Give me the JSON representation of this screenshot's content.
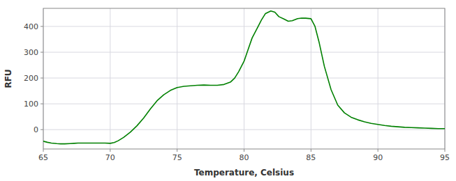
{
  "chart_data": {
    "type": "line",
    "xlabel": "Temperature, Celsius",
    "ylabel": "RFU",
    "color": "#008000",
    "grid": true,
    "xlim": [
      65,
      95
    ],
    "ylim": [
      -75,
      470
    ],
    "xticks": [
      65,
      70,
      75,
      80,
      85,
      90,
      95
    ],
    "yticks": [
      0,
      100,
      200,
      300,
      400
    ],
    "x": [
      65.0,
      65.3,
      65.6,
      66.0,
      66.3,
      66.6,
      67.0,
      67.3,
      67.6,
      68.0,
      68.3,
      68.6,
      69.0,
      69.3,
      69.6,
      70.0,
      70.3,
      70.6,
      71.0,
      71.5,
      72.0,
      72.5,
      73.0,
      73.5,
      74.0,
      74.5,
      75.0,
      75.5,
      76.0,
      76.5,
      77.0,
      77.5,
      78.0,
      78.5,
      79.0,
      79.3,
      79.6,
      80.0,
      80.3,
      80.6,
      81.0,
      81.3,
      81.6,
      82.0,
      82.3,
      82.6,
      83.0,
      83.3,
      83.6,
      84.0,
      84.3,
      84.6,
      85.0,
      85.3,
      85.6,
      86.0,
      86.5,
      87.0,
      87.5,
      88.0,
      88.5,
      89.0,
      89.5,
      90.0,
      90.5,
      91.0,
      91.5,
      92.0,
      92.5,
      93.0,
      93.5,
      94.0,
      94.5,
      95.0
    ],
    "values": [
      -45,
      -49,
      -52,
      -54,
      -55,
      -55,
      -54,
      -53,
      -52,
      -52,
      -52,
      -52,
      -52,
      -52,
      -52,
      -53,
      -50,
      -43,
      -30,
      -10,
      15,
      45,
      80,
      112,
      135,
      152,
      163,
      168,
      170,
      172,
      173,
      172,
      172,
      175,
      185,
      200,
      225,
      265,
      310,
      355,
      395,
      425,
      450,
      460,
      455,
      438,
      428,
      420,
      422,
      430,
      432,
      432,
      430,
      400,
      340,
      245,
      155,
      95,
      65,
      48,
      38,
      30,
      24,
      20,
      16,
      13,
      11,
      9,
      8,
      7,
      6,
      5,
      4,
      4
    ]
  }
}
